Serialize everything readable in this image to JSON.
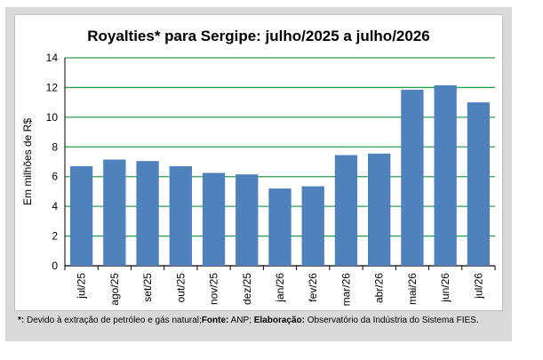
{
  "chart_data": {
    "type": "bar",
    "title": "Royalties* para Sergipe: julho/2025 a julho/2026",
    "ylabel": "Em milhões de R$",
    "xlabel": "",
    "ylim": [
      0,
      14
    ],
    "yticks": [
      0,
      2,
      4,
      6,
      8,
      10,
      12,
      14
    ],
    "grid": true,
    "bar_color": "#4f81bd",
    "grid_color": "#2e9e4f",
    "categories": [
      "jul/25",
      "ago/25",
      "set/25",
      "out/25",
      "nov/25",
      "dez/25",
      "jan/26",
      "fev/26",
      "mar/26",
      "abr/26",
      "mai/26",
      "jun/26",
      "jul/26"
    ],
    "values": [
      6.7,
      7.15,
      7.05,
      6.7,
      6.25,
      6.15,
      5.2,
      5.35,
      7.45,
      7.55,
      11.85,
      12.15,
      11.0
    ]
  },
  "footnote": {
    "mark": "*:",
    "text1": " Devido à extração de petróleo e gás natural;",
    "fonte_label": "Fonte:",
    "fonte_text": " ANP; ",
    "elab_label": "Elaboração:",
    "elab_text": " Observatório da Indústria do Sistema FIES."
  }
}
